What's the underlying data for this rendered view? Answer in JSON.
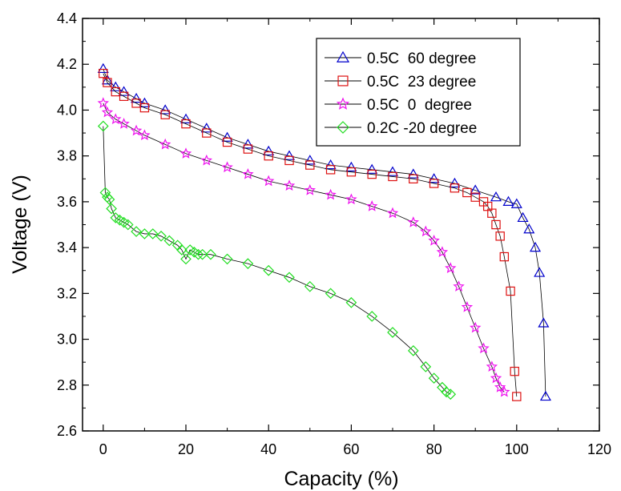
{
  "chart_data": {
    "type": "line",
    "xlabel": "Capacity (%)",
    "ylabel": "Voltage (V)",
    "xlim": [
      -5,
      120
    ],
    "ylim": [
      2.6,
      4.4
    ],
    "x_ticks": [
      0,
      20,
      40,
      60,
      80,
      100,
      120
    ],
    "y_ticks": [
      2.6,
      2.8,
      3.0,
      3.2,
      3.4,
      3.6,
      3.8,
      4.0,
      4.2,
      4.4
    ],
    "x_tick_labels": [
      "0",
      "20",
      "40",
      "60",
      "80",
      "100",
      "120"
    ],
    "y_tick_labels": [
      "2.6",
      "2.8",
      "3.0",
      "3.2",
      "3.4",
      "3.6",
      "3.8",
      "4.0",
      "4.2",
      "4.4"
    ],
    "grid": false,
    "legend_position": "top-right",
    "series": [
      {
        "name": "0.5C  60 degree",
        "color": "#0000cc",
        "marker": "triangle",
        "x": [
          0,
          1,
          3,
          5,
          8,
          10,
          15,
          20,
          25,
          30,
          35,
          40,
          45,
          50,
          55,
          60,
          65,
          70,
          75,
          80,
          85,
          90,
          95,
          98,
          100,
          101.5,
          103,
          104.5,
          105.5,
          106.5,
          107
        ],
        "y": [
          4.18,
          4.13,
          4.1,
          4.08,
          4.05,
          4.03,
          4.0,
          3.96,
          3.92,
          3.88,
          3.85,
          3.82,
          3.8,
          3.78,
          3.76,
          3.75,
          3.74,
          3.73,
          3.72,
          3.7,
          3.68,
          3.65,
          3.62,
          3.6,
          3.59,
          3.53,
          3.48,
          3.4,
          3.29,
          3.07,
          2.75
        ]
      },
      {
        "name": "0.5C  23 degree",
        "color": "#dd1111",
        "marker": "square",
        "x": [
          0,
          1,
          3,
          5,
          8,
          10,
          15,
          20,
          25,
          30,
          35,
          40,
          45,
          50,
          55,
          60,
          65,
          70,
          75,
          80,
          85,
          88,
          90,
          92,
          93,
          94,
          95,
          96,
          97,
          98.5,
          99.5,
          100
        ],
        "y": [
          4.16,
          4.12,
          4.08,
          4.06,
          4.03,
          4.01,
          3.98,
          3.94,
          3.9,
          3.86,
          3.83,
          3.8,
          3.78,
          3.76,
          3.74,
          3.73,
          3.72,
          3.71,
          3.7,
          3.68,
          3.66,
          3.64,
          3.62,
          3.6,
          3.58,
          3.55,
          3.5,
          3.45,
          3.36,
          3.21,
          2.86,
          2.75
        ]
      },
      {
        "name": "0.5C  0  degree",
        "color": "#ee11ee",
        "marker": "star",
        "x": [
          0,
          1,
          3,
          5,
          8,
          10,
          15,
          20,
          25,
          30,
          35,
          40,
          45,
          50,
          55,
          60,
          65,
          70,
          75,
          78,
          80,
          82,
          84,
          86,
          88,
          90,
          92,
          94,
          95,
          96,
          97
        ],
        "y": [
          4.03,
          3.99,
          3.96,
          3.94,
          3.91,
          3.89,
          3.85,
          3.81,
          3.78,
          3.75,
          3.72,
          3.69,
          3.67,
          3.65,
          3.63,
          3.61,
          3.58,
          3.55,
          3.51,
          3.47,
          3.43,
          3.38,
          3.31,
          3.23,
          3.14,
          3.05,
          2.96,
          2.88,
          2.83,
          2.79,
          2.77
        ]
      },
      {
        "name": "0.2C -20 degree",
        "color": "#22dd22",
        "marker": "diamond",
        "x": [
          0,
          0.5,
          1,
          1.5,
          2,
          3,
          4,
          5,
          6,
          8,
          10,
          12,
          14,
          16,
          18,
          19,
          20,
          21,
          22,
          23,
          24,
          26,
          30,
          35,
          40,
          45,
          50,
          55,
          60,
          65,
          70,
          75,
          78,
          80,
          82,
          83,
          84
        ],
        "y": [
          3.93,
          3.64,
          3.62,
          3.61,
          3.57,
          3.53,
          3.52,
          3.51,
          3.5,
          3.47,
          3.46,
          3.46,
          3.45,
          3.43,
          3.41,
          3.39,
          3.35,
          3.39,
          3.38,
          3.37,
          3.37,
          3.37,
          3.35,
          3.33,
          3.3,
          3.27,
          3.23,
          3.2,
          3.16,
          3.1,
          3.03,
          2.95,
          2.88,
          2.83,
          2.79,
          2.77,
          2.76
        ]
      }
    ]
  }
}
